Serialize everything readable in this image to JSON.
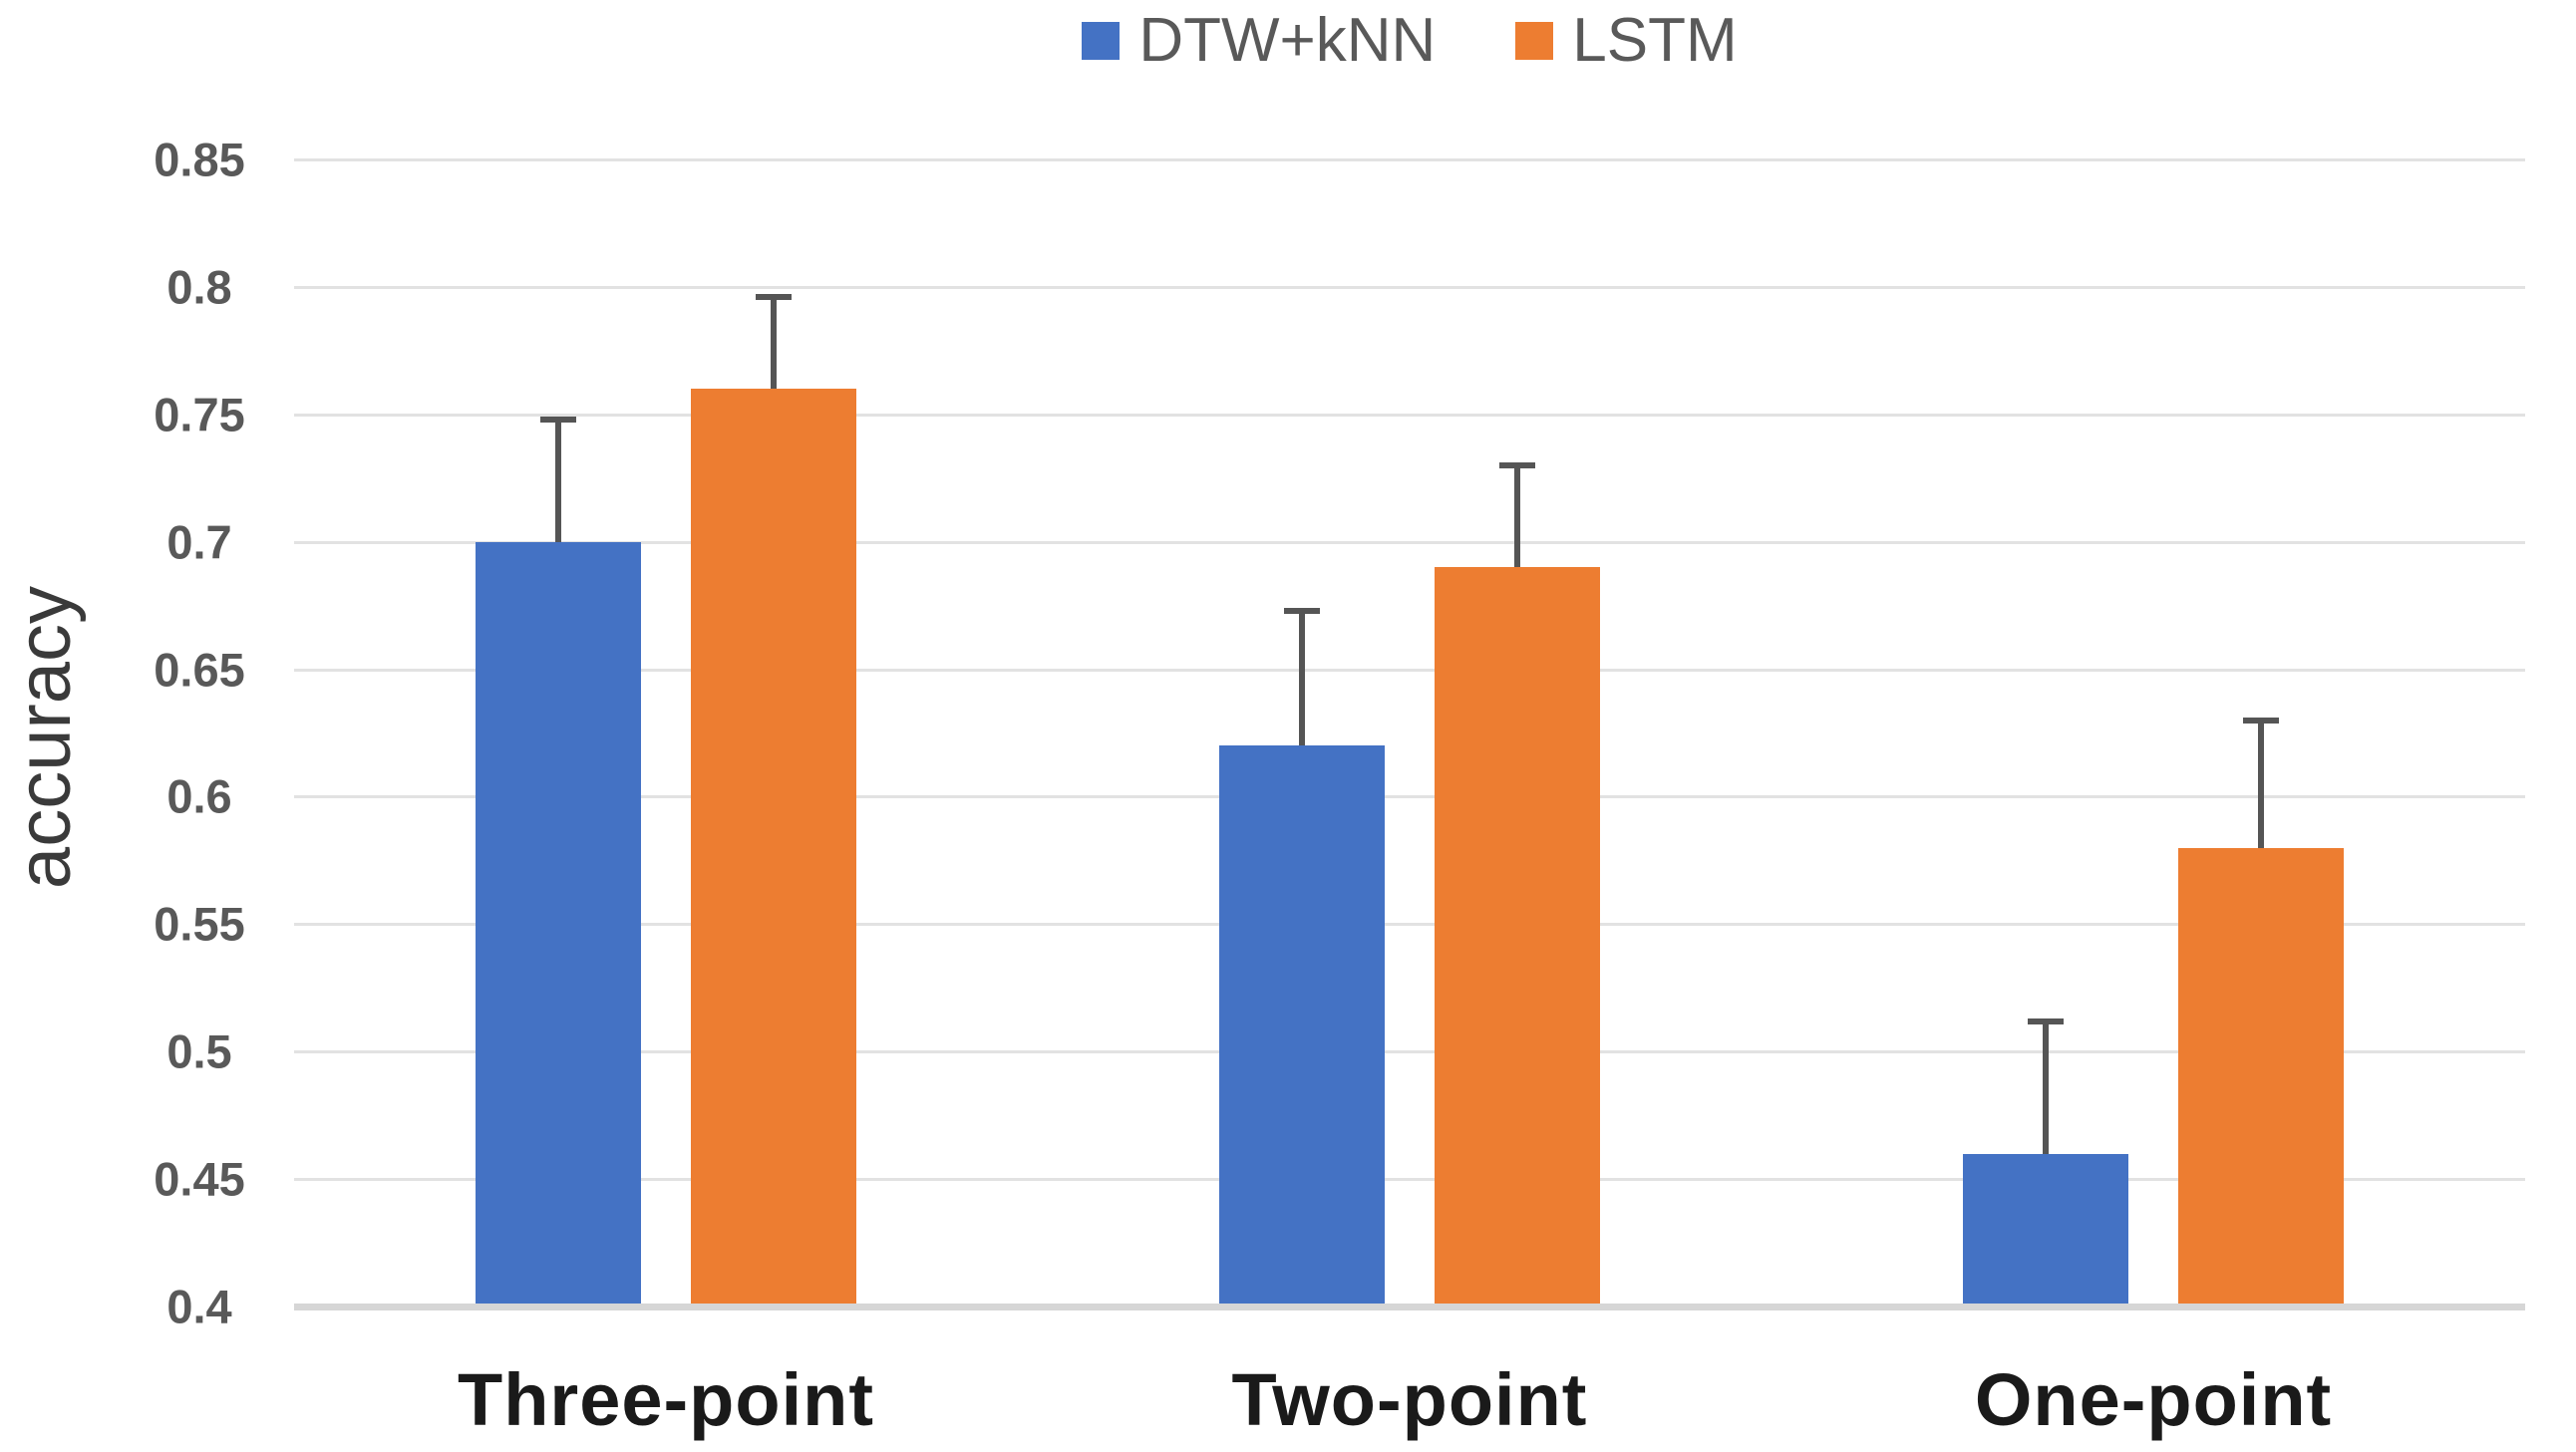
{
  "chart_data": {
    "type": "bar",
    "categories": [
      "Three-point",
      "Two-point",
      "One-point"
    ],
    "series": [
      {
        "name": "DTW+kNN",
        "color": "#4472C4",
        "values": [
          0.7,
          0.62,
          0.46
        ],
        "error_up": [
          0.048,
          0.053,
          0.052
        ]
      },
      {
        "name": "LSTM",
        "color": "#ED7D31",
        "values": [
          0.76,
          0.69,
          0.58
        ],
        "error_up": [
          0.036,
          0.04,
          0.05
        ]
      }
    ],
    "ylabel": "accuracy",
    "ylim": [
      0.4,
      0.85
    ],
    "ytick_labels": [
      "0.85",
      "0.8",
      "0.75",
      "0.7",
      "0.65",
      "0.6",
      "0.55",
      "0.5",
      "0.45",
      "0.4"
    ],
    "grid": true,
    "legend_position": "top-center",
    "error_bars": true
  },
  "colors": {
    "gridline": "#E2E2E2",
    "axis_baseline": "#D6D6D6",
    "error_bar": "#555555",
    "tick_label": "#595959",
    "category_label": "#1A1A1A",
    "legend_label": "#595959"
  }
}
